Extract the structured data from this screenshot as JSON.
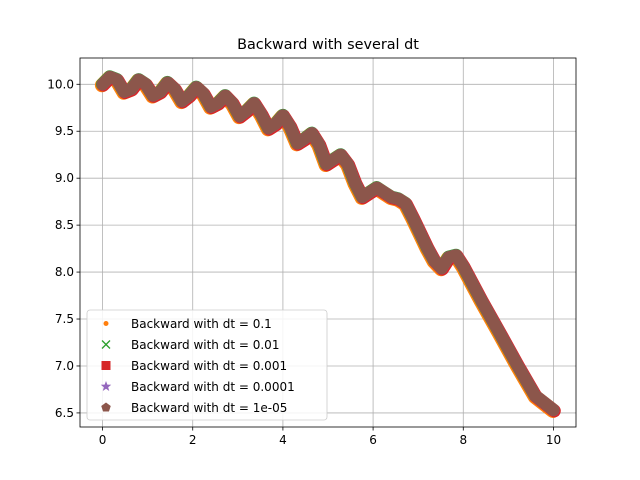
{
  "chart_data": {
    "type": "scatter",
    "title": "Backward with several dt",
    "xlabel": "",
    "ylabel": "",
    "xlim": [
      -0.5,
      10.5
    ],
    "ylim": [
      6.35,
      10.28
    ],
    "xticks": [
      0,
      2,
      4,
      6,
      8,
      10
    ],
    "yticks": [
      6.5,
      7.0,
      7.5,
      8.0,
      8.5,
      9.0,
      9.5,
      10.0
    ],
    "xtick_labels": [
      "0",
      "2",
      "4",
      "6",
      "8",
      "10"
    ],
    "ytick_labels": [
      "6.5",
      "7.0",
      "7.5",
      "8.0",
      "8.5",
      "9.0",
      "9.5",
      "10.0"
    ],
    "grid": true,
    "legend_position": "lower-left",
    "curve_x": [
      0,
      0.16,
      0.32,
      0.48,
      0.64,
      0.8,
      0.96,
      1.12,
      1.28,
      1.44,
      1.6,
      1.76,
      1.92,
      2.08,
      2.24,
      2.4,
      2.56,
      2.72,
      2.88,
      3.04,
      3.2,
      3.36,
      3.52,
      3.68,
      3.84,
      4.0,
      4.16,
      4.32,
      4.48,
      4.64,
      4.8,
      4.96,
      5.12,
      5.28,
      5.44,
      5.6,
      5.76,
      5.92,
      6.08,
      6.24,
      6.4,
      6.56,
      6.72,
      6.88,
      7.04,
      7.2,
      7.36,
      7.52,
      7.68,
      7.84,
      8.0,
      8.4,
      8.8,
      9.2,
      9.6,
      10.0
    ],
    "curve_y": [
      10.0,
      10.08,
      10.05,
      9.92,
      9.95,
      10.05,
      10.0,
      9.88,
      9.92,
      10.02,
      9.95,
      9.82,
      9.88,
      9.97,
      9.9,
      9.76,
      9.8,
      9.88,
      9.8,
      9.66,
      9.72,
      9.8,
      9.68,
      9.53,
      9.58,
      9.67,
      9.55,
      9.37,
      9.42,
      9.48,
      9.36,
      9.15,
      9.2,
      9.25,
      9.15,
      8.95,
      8.8,
      8.85,
      8.9,
      8.85,
      8.8,
      8.78,
      8.73,
      8.58,
      8.42,
      8.26,
      8.12,
      8.04,
      8.16,
      8.18,
      8.06,
      7.7,
      7.36,
      7.01,
      6.68,
      6.53
    ],
    "series": [
      {
        "name": "Backward with dt = 0.1",
        "color": "#ff7f0e",
        "marker": "dot"
      },
      {
        "name": "Backward with dt = 0.01",
        "color": "#2ca02c",
        "marker": "x"
      },
      {
        "name": "Backward with dt = 0.001",
        "color": "#d62728",
        "marker": "square"
      },
      {
        "name": "Backward with dt = 0.0001",
        "color": "#9467bd",
        "marker": "star"
      },
      {
        "name": "Backward with dt = 1e-05",
        "color": "#8c564b",
        "marker": "pentagon"
      }
    ]
  }
}
